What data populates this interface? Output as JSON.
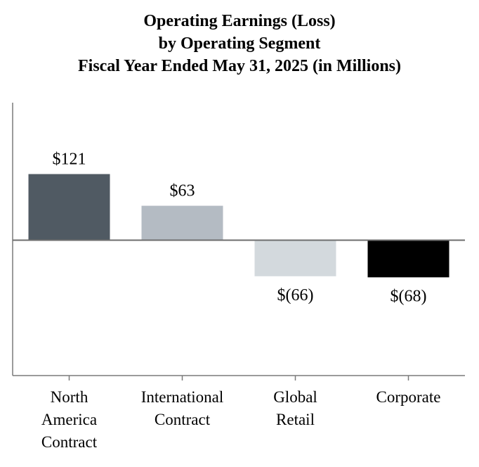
{
  "chart_data": {
    "type": "bar",
    "title": [
      "Operating Earnings (Loss)",
      "by Operating Segment",
      "Fiscal Year Ended May 31, 2025 (in Millions)"
    ],
    "categories": [
      [
        "North",
        "America",
        "Contract"
      ],
      [
        "International",
        "Contract"
      ],
      [
        "Global",
        "Retail"
      ],
      [
        "Corporate"
      ]
    ],
    "values": [
      121,
      63,
      -66,
      -68
    ],
    "data_labels": [
      "$121",
      "$63",
      "$(66)",
      "$(68)"
    ],
    "bar_colors": [
      "#505a63",
      "#b4bbc3",
      "#d3d9dd",
      "#000000"
    ],
    "ylim": [
      -250,
      250
    ],
    "xlabel": "",
    "ylabel": "",
    "grid": false,
    "legend": "none"
  }
}
